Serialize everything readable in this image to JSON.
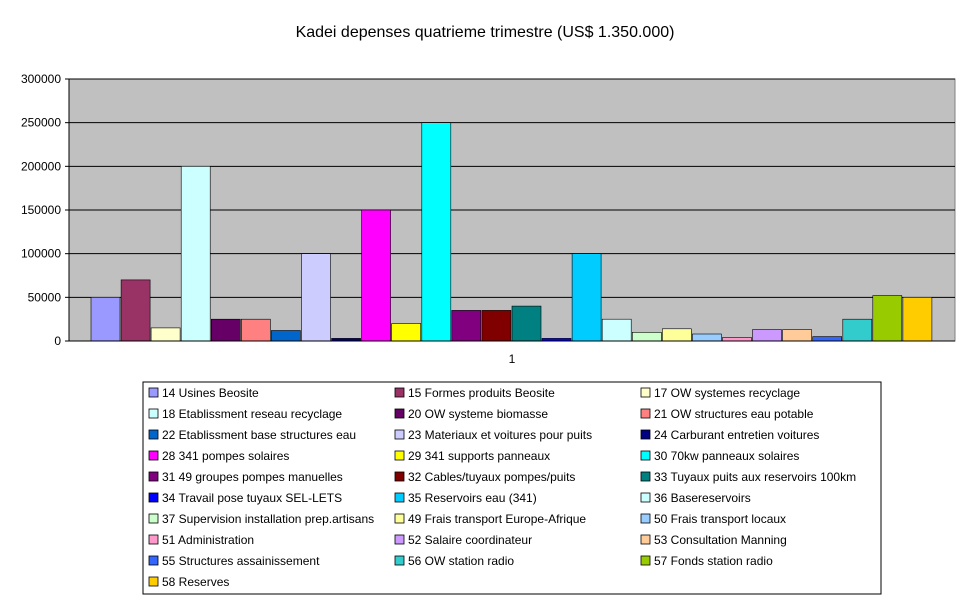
{
  "chart_data": {
    "type": "bar",
    "title": "Kadei depenses quatrieme trimestre (US$ 1.350.000)",
    "xlabel": "",
    "ylabel": "",
    "categories": [
      "1"
    ],
    "ylim": [
      0,
      300000
    ],
    "yticks": [
      "0",
      "50000",
      "100000",
      "150000",
      "200000",
      "250000",
      "300000"
    ],
    "ytick_values": [
      0,
      50000,
      100000,
      150000,
      200000,
      250000,
      300000
    ],
    "grid": true,
    "legend_position": "bottom",
    "plot_background": "#c0c0c0",
    "series": [
      {
        "name": "14 Usines Beosite",
        "value": 50000,
        "color": "#9999ff"
      },
      {
        "name": "15 Formes produits Beosite",
        "value": 70000,
        "color": "#993366"
      },
      {
        "name": "17 OW systemes recyclage",
        "value": 15000,
        "color": "#ffffcc"
      },
      {
        "name": "18 Etablissment reseau recyclage",
        "value": 200000,
        "color": "#ccffff"
      },
      {
        "name": "20 OW systeme biomasse",
        "value": 25000,
        "color": "#660066"
      },
      {
        "name": "21 OW structures eau potable",
        "value": 25000,
        "color": "#ff8080"
      },
      {
        "name": "22 Etablissment base structures eau",
        "value": 12000,
        "color": "#0066cc"
      },
      {
        "name": "23 Materiaux et voitures pour puits",
        "value": 100000,
        "color": "#ccccff"
      },
      {
        "name": "24 Carburant entretien voitures",
        "value": 3000,
        "color": "#000080"
      },
      {
        "name": "28 341 pompes solaires",
        "value": 150000,
        "color": "#ff00ff"
      },
      {
        "name": "29 341 supports panneaux",
        "value": 20000,
        "color": "#ffff00"
      },
      {
        "name": "30 70kw panneaux solaires",
        "value": 250000,
        "color": "#00ffff"
      },
      {
        "name": "31 49 groupes pompes manuelles",
        "value": 35000,
        "color": "#800080"
      },
      {
        "name": "32 Cables/tuyaux pompes/puits",
        "value": 35000,
        "color": "#800000"
      },
      {
        "name": "33 Tuyaux puits aux reservoirs 100km",
        "value": 40000,
        "color": "#008080"
      },
      {
        "name": "34 Travail pose tuyaux SEL-LETS",
        "value": 3000,
        "color": "#0000ff"
      },
      {
        "name": "35 Reservoirs eau (341)",
        "value": 100000,
        "color": "#00ccff"
      },
      {
        "name": "36 Basereservoirs",
        "value": 25000,
        "color": "#ccffff"
      },
      {
        "name": "37 Supervision installation prep.artisans",
        "value": 10000,
        "color": "#ccffcc"
      },
      {
        "name": "49 Frais transport Europe-Afrique",
        "value": 14000,
        "color": "#ffff99"
      },
      {
        "name": "50 Frais transport locaux",
        "value": 8000,
        "color": "#99ccff"
      },
      {
        "name": "51 Administration",
        "value": 4000,
        "color": "#ff99cc"
      },
      {
        "name": "52 Salaire coordinateur",
        "value": 13000,
        "color": "#cc99ff"
      },
      {
        "name": "53 Consultation Manning",
        "value": 13000,
        "color": "#ffcc99"
      },
      {
        "name": "55 Structures assainissement",
        "value": 5000,
        "color": "#3366ff"
      },
      {
        "name": "56 OW station radio",
        "value": 25000,
        "color": "#33cccc"
      },
      {
        "name": "57 Fonds station radio",
        "value": 52000,
        "color": "#99cc00"
      },
      {
        "name": "58 Reserves",
        "value": 50000,
        "color": "#ffcc00"
      }
    ]
  }
}
